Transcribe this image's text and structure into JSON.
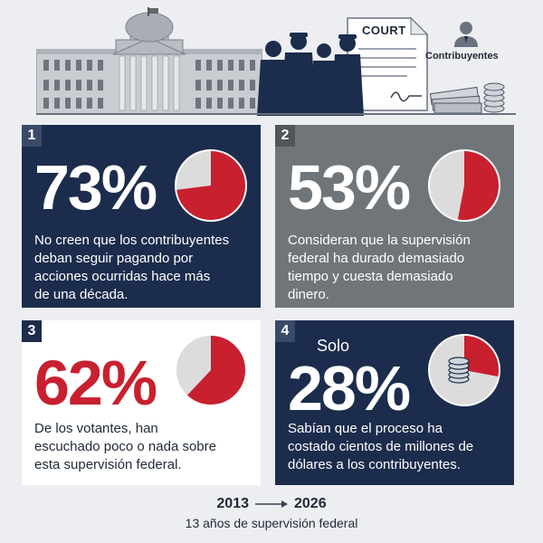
{
  "header": {
    "court_label": "COURT",
    "taxpayers_label": "Contribuyentes"
  },
  "colors": {
    "navy": "#1c2c4c",
    "gray": "#707579",
    "red": "#c8202f",
    "pie_light": "#dcdcdc"
  },
  "cards": [
    {
      "number": "1",
      "percent": "73%",
      "value": 73,
      "text_lines": [
        "No creen que los contribuyentes",
        "deban seguir pagando por",
        "acciones ocurridas hace más",
        "de una década."
      ]
    },
    {
      "number": "2",
      "percent": "53%",
      "value": 53,
      "text_lines": [
        "Consideran que la supervisión",
        "federal ha durado demasiado",
        "tiempo y cuesta demasiado",
        "dinero."
      ]
    },
    {
      "number": "3",
      "percent": "62%",
      "value": 62,
      "text_lines": [
        "De los votantes, han",
        "escuchado poco o nada sobre",
        "esta supervisión federal."
      ]
    },
    {
      "number": "4",
      "prefix": "Solo",
      "percent": "28%",
      "value": 28,
      "text_lines": [
        "Sabían que el proceso ha",
        "costado cientos de millones de",
        "dólares a los contribuyentes."
      ]
    }
  ],
  "timeline": {
    "start_year": "2013",
    "end_year": "2026",
    "caption": "13 años de supervisión federal"
  }
}
